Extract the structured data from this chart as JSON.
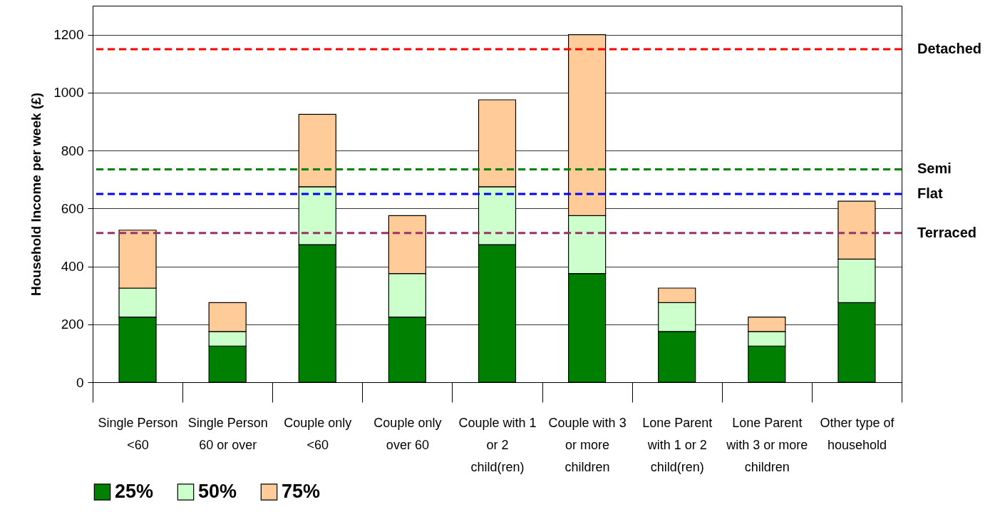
{
  "chart_data": {
    "type": "bar",
    "stacked": true,
    "ylabel": "Household Income per week (£)",
    "categories": [
      "Single Person <60",
      "Single Person 60 or over",
      "Couple only <60",
      "Couple only over 60",
      "Couple with 1 or 2 child(ren)",
      "Couple with 3 or more children",
      "Lone Parent with 1 or 2 child(ren)",
      "Lone Parent with 3 or more children",
      "Other type of household"
    ],
    "series": [
      {
        "name": "25%",
        "color": "#008000",
        "values": [
          225,
          125,
          475,
          225,
          475,
          375,
          175,
          125,
          275
        ]
      },
      {
        "name": "50%",
        "color": "#ccffcc",
        "values": [
          100,
          50,
          200,
          150,
          200,
          200,
          100,
          50,
          150
        ]
      },
      {
        "name": "75%",
        "color": "#ffcc99",
        "values": [
          200,
          100,
          250,
          200,
          300,
          625,
          50,
          50,
          200
        ]
      }
    ],
    "ylim": [
      0,
      1300
    ],
    "yticks": [
      0,
      200,
      400,
      600,
      800,
      1000,
      1200
    ],
    "grid": "y",
    "legend": "bottom",
    "ref_lines": [
      {
        "axis": "y",
        "value": 1150,
        "label": "Detached",
        "color": "#ff0000",
        "line_style": "dashed"
      },
      {
        "axis": "y",
        "value": 735,
        "label": "Semi",
        "color": "#008000",
        "line_style": "dashed"
      },
      {
        "axis": "y",
        "value": 650,
        "label": "Flat",
        "color": "#0000ff",
        "line_style": "dashed"
      },
      {
        "axis": "y",
        "value": 515,
        "label": "Terraced",
        "color": "#993366",
        "line_style": "dashed"
      }
    ]
  }
}
